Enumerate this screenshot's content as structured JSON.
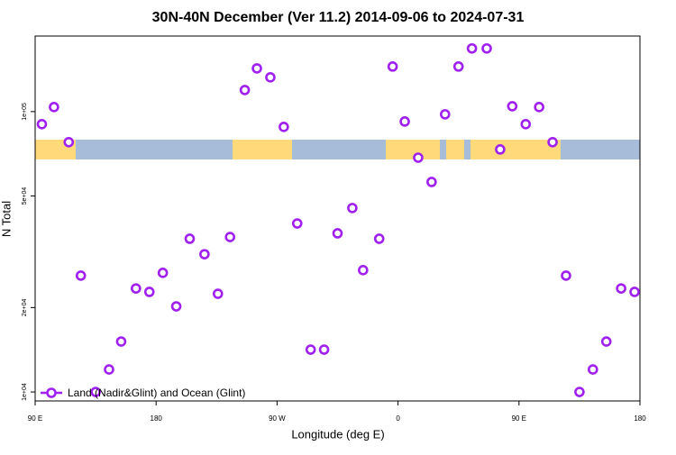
{
  "chart_data": {
    "type": "scatter",
    "title": "30N-40N December (Ver 11.2)   2014-09-06 to 2024-07-31",
    "x_label": "Longitude (deg E)",
    "y_label": "N Total",
    "log_y": true,
    "legend": "bottom-left",
    "xlim": [
      90,
      540
    ],
    "xticks": [
      {
        "value": 90,
        "label": "90 E"
      },
      {
        "value": 180,
        "label": "180"
      },
      {
        "value": 270,
        "label": "90 W"
      },
      {
        "value": 360,
        "label": "0"
      },
      {
        "value": 450,
        "label": "90 E"
      },
      {
        "value": 540,
        "label": "180"
      }
    ],
    "ylim": [
      9290,
      186000
    ],
    "yticks": [
      {
        "value": 10000,
        "label": "1e+04"
      },
      {
        "value": 20000,
        "label": "2e+04"
      },
      {
        "value": 50000,
        "label": "5e+04"
      },
      {
        "value": 100000,
        "label": "1e+05"
      }
    ],
    "series": [
      {
        "name": "Land (Nadir&Glint) and Ocean (Glint)",
        "color": "#a020f0",
        "x": [
          95,
          104,
          115,
          124,
          135,
          145,
          154,
          165,
          175,
          185,
          195,
          205,
          216,
          226,
          235,
          246,
          255,
          265,
          275,
          285,
          295,
          305,
          315,
          326,
          334,
          346,
          356,
          365,
          375,
          385,
          395,
          405,
          415,
          426,
          436,
          445,
          455,
          465,
          475,
          485,
          495,
          505,
          515,
          526,
          536
        ],
        "values": [
          90200,
          103800,
          77800,
          26000,
          10000,
          12030,
          15130,
          23400,
          22750,
          26600,
          20200,
          35200,
          31000,
          22400,
          35700,
          119400,
          142600,
          132500,
          88200,
          39900,
          14160,
          14160,
          36800,
          45300,
          27200,
          35200,
          144800,
          92200,
          68500,
          56100,
          97800,
          144800,
          168000,
          168000,
          73300,
          104500,
          90200,
          103800,
          77800,
          26000,
          10000,
          12030,
          15130,
          23400,
          22750
        ]
      }
    ]
  }
}
